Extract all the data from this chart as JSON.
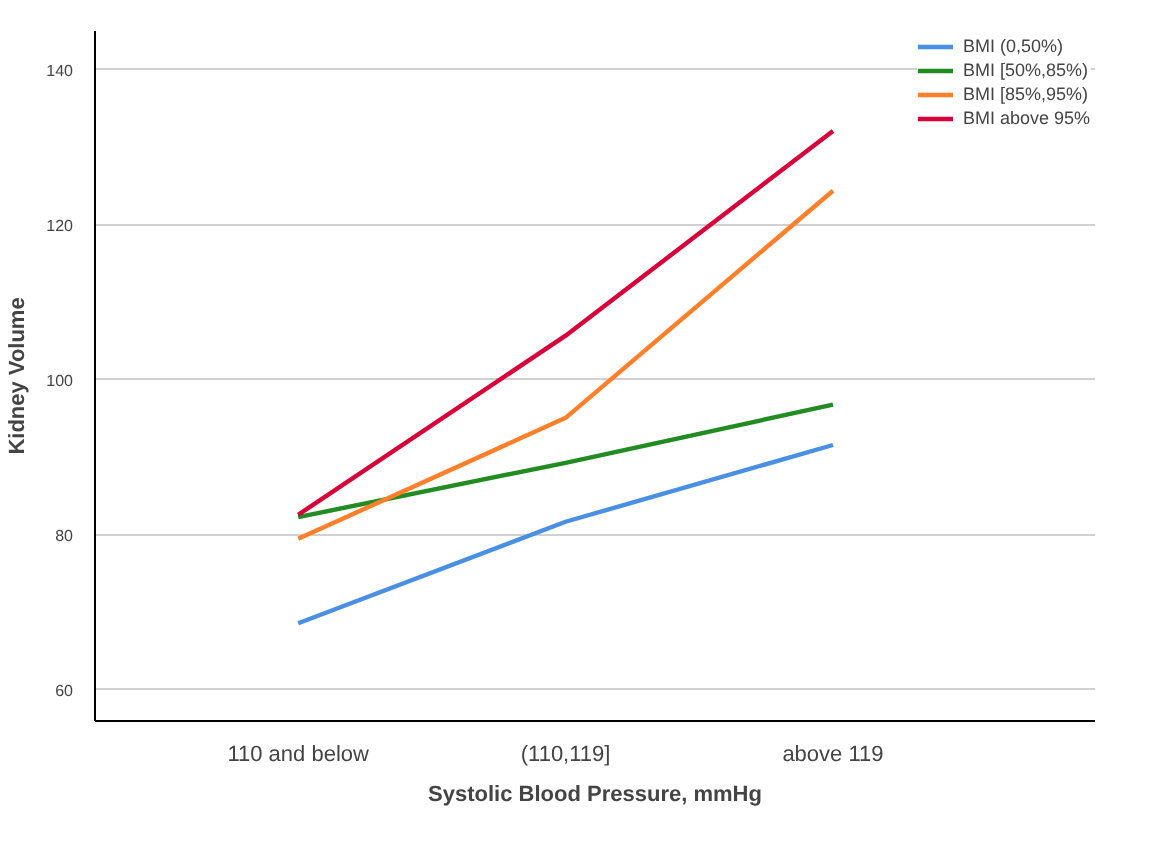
{
  "chart_data": {
    "type": "line",
    "xlabel": "Systolic Blood Pressure, mmHg",
    "ylabel": "Kidney Volume",
    "categories": [
      "110 and below",
      "(110,119]",
      "above 119"
    ],
    "series": [
      {
        "name": "BMI (0,50%)",
        "color": "#4a90e2",
        "values": [
          68.6,
          81.7,
          91.6
        ]
      },
      {
        "name": "BMI [50%,85%)",
        "color": "#228b22",
        "values": [
          82.3,
          89.3,
          96.8
        ]
      },
      {
        "name": "BMI [85%,95%)",
        "color": "#ff7f2a",
        "values": [
          79.5,
          95.1,
          124.4
        ]
      },
      {
        "name": "BMI above 95%",
        "color": "#d9003a",
        "values": [
          82.6,
          105.7,
          132.1
        ]
      }
    ],
    "ylim": [
      56,
      145
    ],
    "yticks": [
      60,
      80,
      100,
      120,
      140
    ],
    "grid": "y",
    "legend": "top right",
    "marker": "none",
    "line_style": "solid"
  }
}
